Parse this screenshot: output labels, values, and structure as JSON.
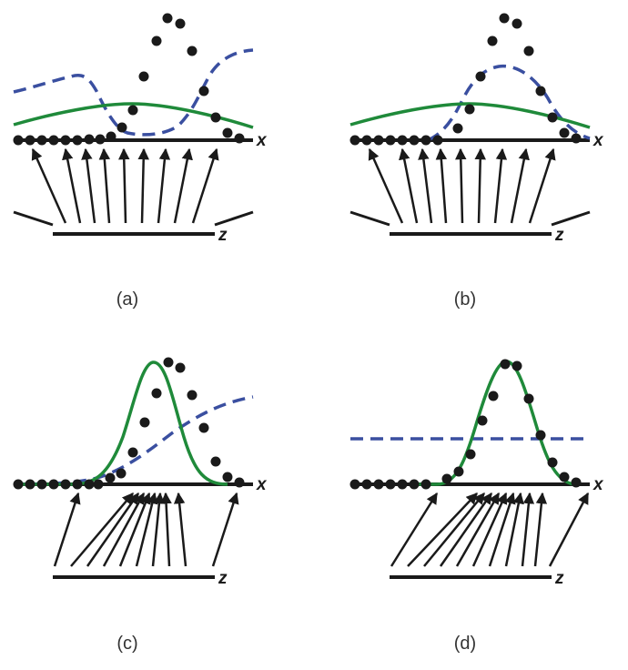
{
  "figure": {
    "colors": {
      "line": "#1a1a1a",
      "green": "#1f8a3a",
      "blue": "#3a4fa0"
    },
    "panels": [
      {
        "id": "a",
        "caption": "(a)",
        "x_label": "x",
        "z_label": "z"
      },
      {
        "id": "b",
        "caption": "(b)",
        "x_label": "x",
        "z_label": "z"
      },
      {
        "id": "c",
        "caption": "(c)",
        "x_label": "x",
        "z_label": "z"
      },
      {
        "id": "d",
        "caption": "(d)",
        "x_label": "x",
        "z_label": "z"
      }
    ]
  }
}
